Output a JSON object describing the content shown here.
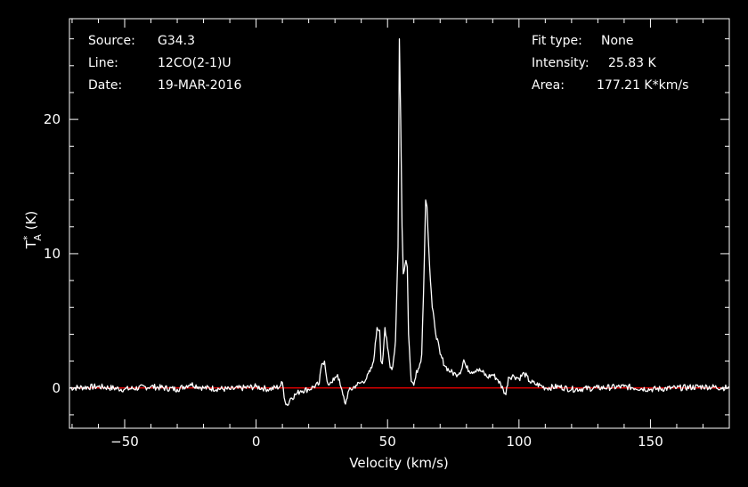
{
  "header": {
    "left": [
      {
        "label": "Source:",
        "value": "G34.3"
      },
      {
        "label": "Line:",
        "value": "12CO(2-1)U"
      },
      {
        "label": "Date:",
        "value": "19-MAR-2016"
      }
    ],
    "right": [
      {
        "label": "Fit type:",
        "value": "None"
      },
      {
        "label": "Intensity:",
        "value": "25.83 K"
      },
      {
        "label": "Area:",
        "value": "177.21 K*km/s"
      }
    ]
  },
  "colors": {
    "background": "#000000",
    "spectrum": "#ffffff",
    "baseline": "#ff0000",
    "frame": "#ffffff"
  },
  "chart_data": {
    "type": "line",
    "xlabel": "Velocity (km/s)",
    "ylabel": "T",
    "ylabel_sup": "*",
    "ylabel_sub": "A",
    "ylabel_unit": " (K)",
    "xlim": [
      -71,
      180
    ],
    "ylim": [
      -3,
      27.5
    ],
    "xticks": [
      -50,
      0,
      50,
      100,
      150
    ],
    "yticks": [
      0,
      10,
      20
    ],
    "baseline_value": 0,
    "series": [
      {
        "x": [
          -71,
          -60,
          -50,
          -40,
          -30,
          -25,
          -20,
          -10,
          0,
          5,
          9,
          10,
          11,
          12,
          13,
          15,
          17,
          20,
          22,
          24,
          25,
          26,
          26.5,
          27,
          28,
          29,
          30,
          31,
          32,
          33,
          34,
          35,
          38,
          40,
          42,
          44,
          45,
          46,
          47,
          47.5,
          48,
          49,
          50,
          51,
          52,
          53,
          54,
          54.5,
          55,
          55.5,
          56,
          57,
          57.5,
          58,
          59,
          60,
          61,
          62,
          63,
          64,
          64.5,
          65,
          66,
          67,
          68,
          70,
          72,
          74,
          76,
          78,
          79,
          80,
          82,
          84,
          86,
          88,
          90,
          92,
          94,
          95,
          96,
          98,
          100,
          102,
          104,
          106,
          108,
          110,
          115,
          120,
          130,
          140,
          150,
          160,
          170,
          180
        ],
        "y": [
          0,
          0.1,
          -0.1,
          0.1,
          -0.1,
          0.3,
          0,
          -0.1,
          0.1,
          -0.1,
          0.1,
          0.4,
          -1.0,
          -1.3,
          -0.8,
          -0.5,
          -0.2,
          -0.1,
          0.1,
          0.3,
          1.8,
          2.0,
          1.2,
          0.5,
          0.3,
          0.4,
          0.8,
          1.0,
          0.2,
          -0.5,
          -1.2,
          -0.3,
          0.2,
          0.4,
          0.7,
          1.5,
          2.5,
          4.5,
          4.3,
          2.0,
          1.8,
          4.5,
          3.0,
          1.5,
          1.6,
          3.5,
          10.5,
          26.0,
          20.0,
          12.0,
          8.5,
          9.5,
          9.0,
          4.0,
          0.5,
          0.2,
          1.3,
          1.5,
          2.5,
          9.5,
          14.0,
          13.5,
          9.0,
          6.0,
          4.5,
          2.5,
          1.6,
          1.2,
          1.0,
          1.3,
          2.1,
          1.5,
          1.2,
          1.4,
          1.2,
          0.8,
          1.0,
          0.6,
          -0.1,
          -0.5,
          0.8,
          0.9,
          0.7,
          1.1,
          0.5,
          0.3,
          0.2,
          0,
          0.1,
          -0.1,
          0,
          0.1,
          -0.1,
          0,
          0.1,
          0
        ]
      }
    ]
  }
}
